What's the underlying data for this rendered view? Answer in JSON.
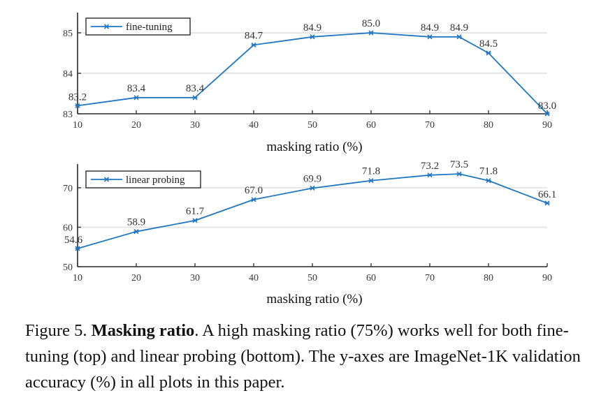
{
  "chart_data": [
    {
      "type": "line",
      "id": "fine-tuning",
      "title": "",
      "xlabel": "masking ratio (%)",
      "ylabel": "",
      "x": [
        10,
        20,
        30,
        40,
        50,
        60,
        70,
        75,
        80,
        90
      ],
      "series": [
        {
          "name": "fine-tuning",
          "values": [
            83.2,
            83.4,
            83.4,
            84.7,
            84.9,
            85.0,
            84.9,
            84.9,
            84.5,
            83.0
          ],
          "labels": [
            "83.2",
            "83.4",
            "83.4",
            "84.7",
            "84.9",
            "85.0",
            "84.9",
            "84.9",
            "84.5",
            "83.0"
          ]
        }
      ],
      "xticks": [
        "10",
        "20",
        "30",
        "40",
        "50",
        "60",
        "70",
        "80",
        "90"
      ],
      "xtick_values": [
        10,
        20,
        30,
        40,
        50,
        60,
        70,
        80,
        90
      ],
      "yticks": [
        "83",
        "84",
        "85"
      ],
      "ytick_values": [
        83,
        84,
        85
      ],
      "xlim": [
        10,
        90
      ],
      "ylim": [
        83,
        85.5
      ],
      "grid": "horizontal",
      "legend": "top-left",
      "color": "#1f77c4"
    },
    {
      "type": "line",
      "id": "linear-probing",
      "title": "",
      "xlabel": "masking ratio (%)",
      "ylabel": "",
      "x": [
        10,
        20,
        30,
        40,
        50,
        60,
        70,
        75,
        80,
        90
      ],
      "series": [
        {
          "name": "linear probing",
          "values": [
            54.6,
            58.9,
            61.7,
            67.0,
            69.9,
            71.8,
            73.2,
            73.5,
            71.8,
            66.1
          ],
          "labels": [
            "54.6",
            "58.9",
            "61.7",
            "67.0",
            "69.9",
            "71.8",
            "73.2",
            "73.5",
            "71.8",
            "66.1"
          ]
        }
      ],
      "xticks": [
        "10",
        "20",
        "30",
        "40",
        "50",
        "60",
        "70",
        "80",
        "90"
      ],
      "xtick_values": [
        10,
        20,
        30,
        40,
        50,
        60,
        70,
        80,
        90
      ],
      "yticks": [
        "50",
        "60",
        "70"
      ],
      "ytick_values": [
        50,
        60,
        70
      ],
      "xlim": [
        10,
        90
      ],
      "ylim": [
        50,
        76
      ],
      "grid": "horizontal",
      "legend": "top-left",
      "color": "#1f77c4"
    }
  ],
  "caption": {
    "prefix": "Figure 5. ",
    "bold": "Masking ratio",
    "rest": ". A high masking ratio (75%) works well for both fine-tuning (top) and linear probing (bottom). The y-axes are ImageNet-1K validation accuracy (%) in all plots in this paper."
  }
}
